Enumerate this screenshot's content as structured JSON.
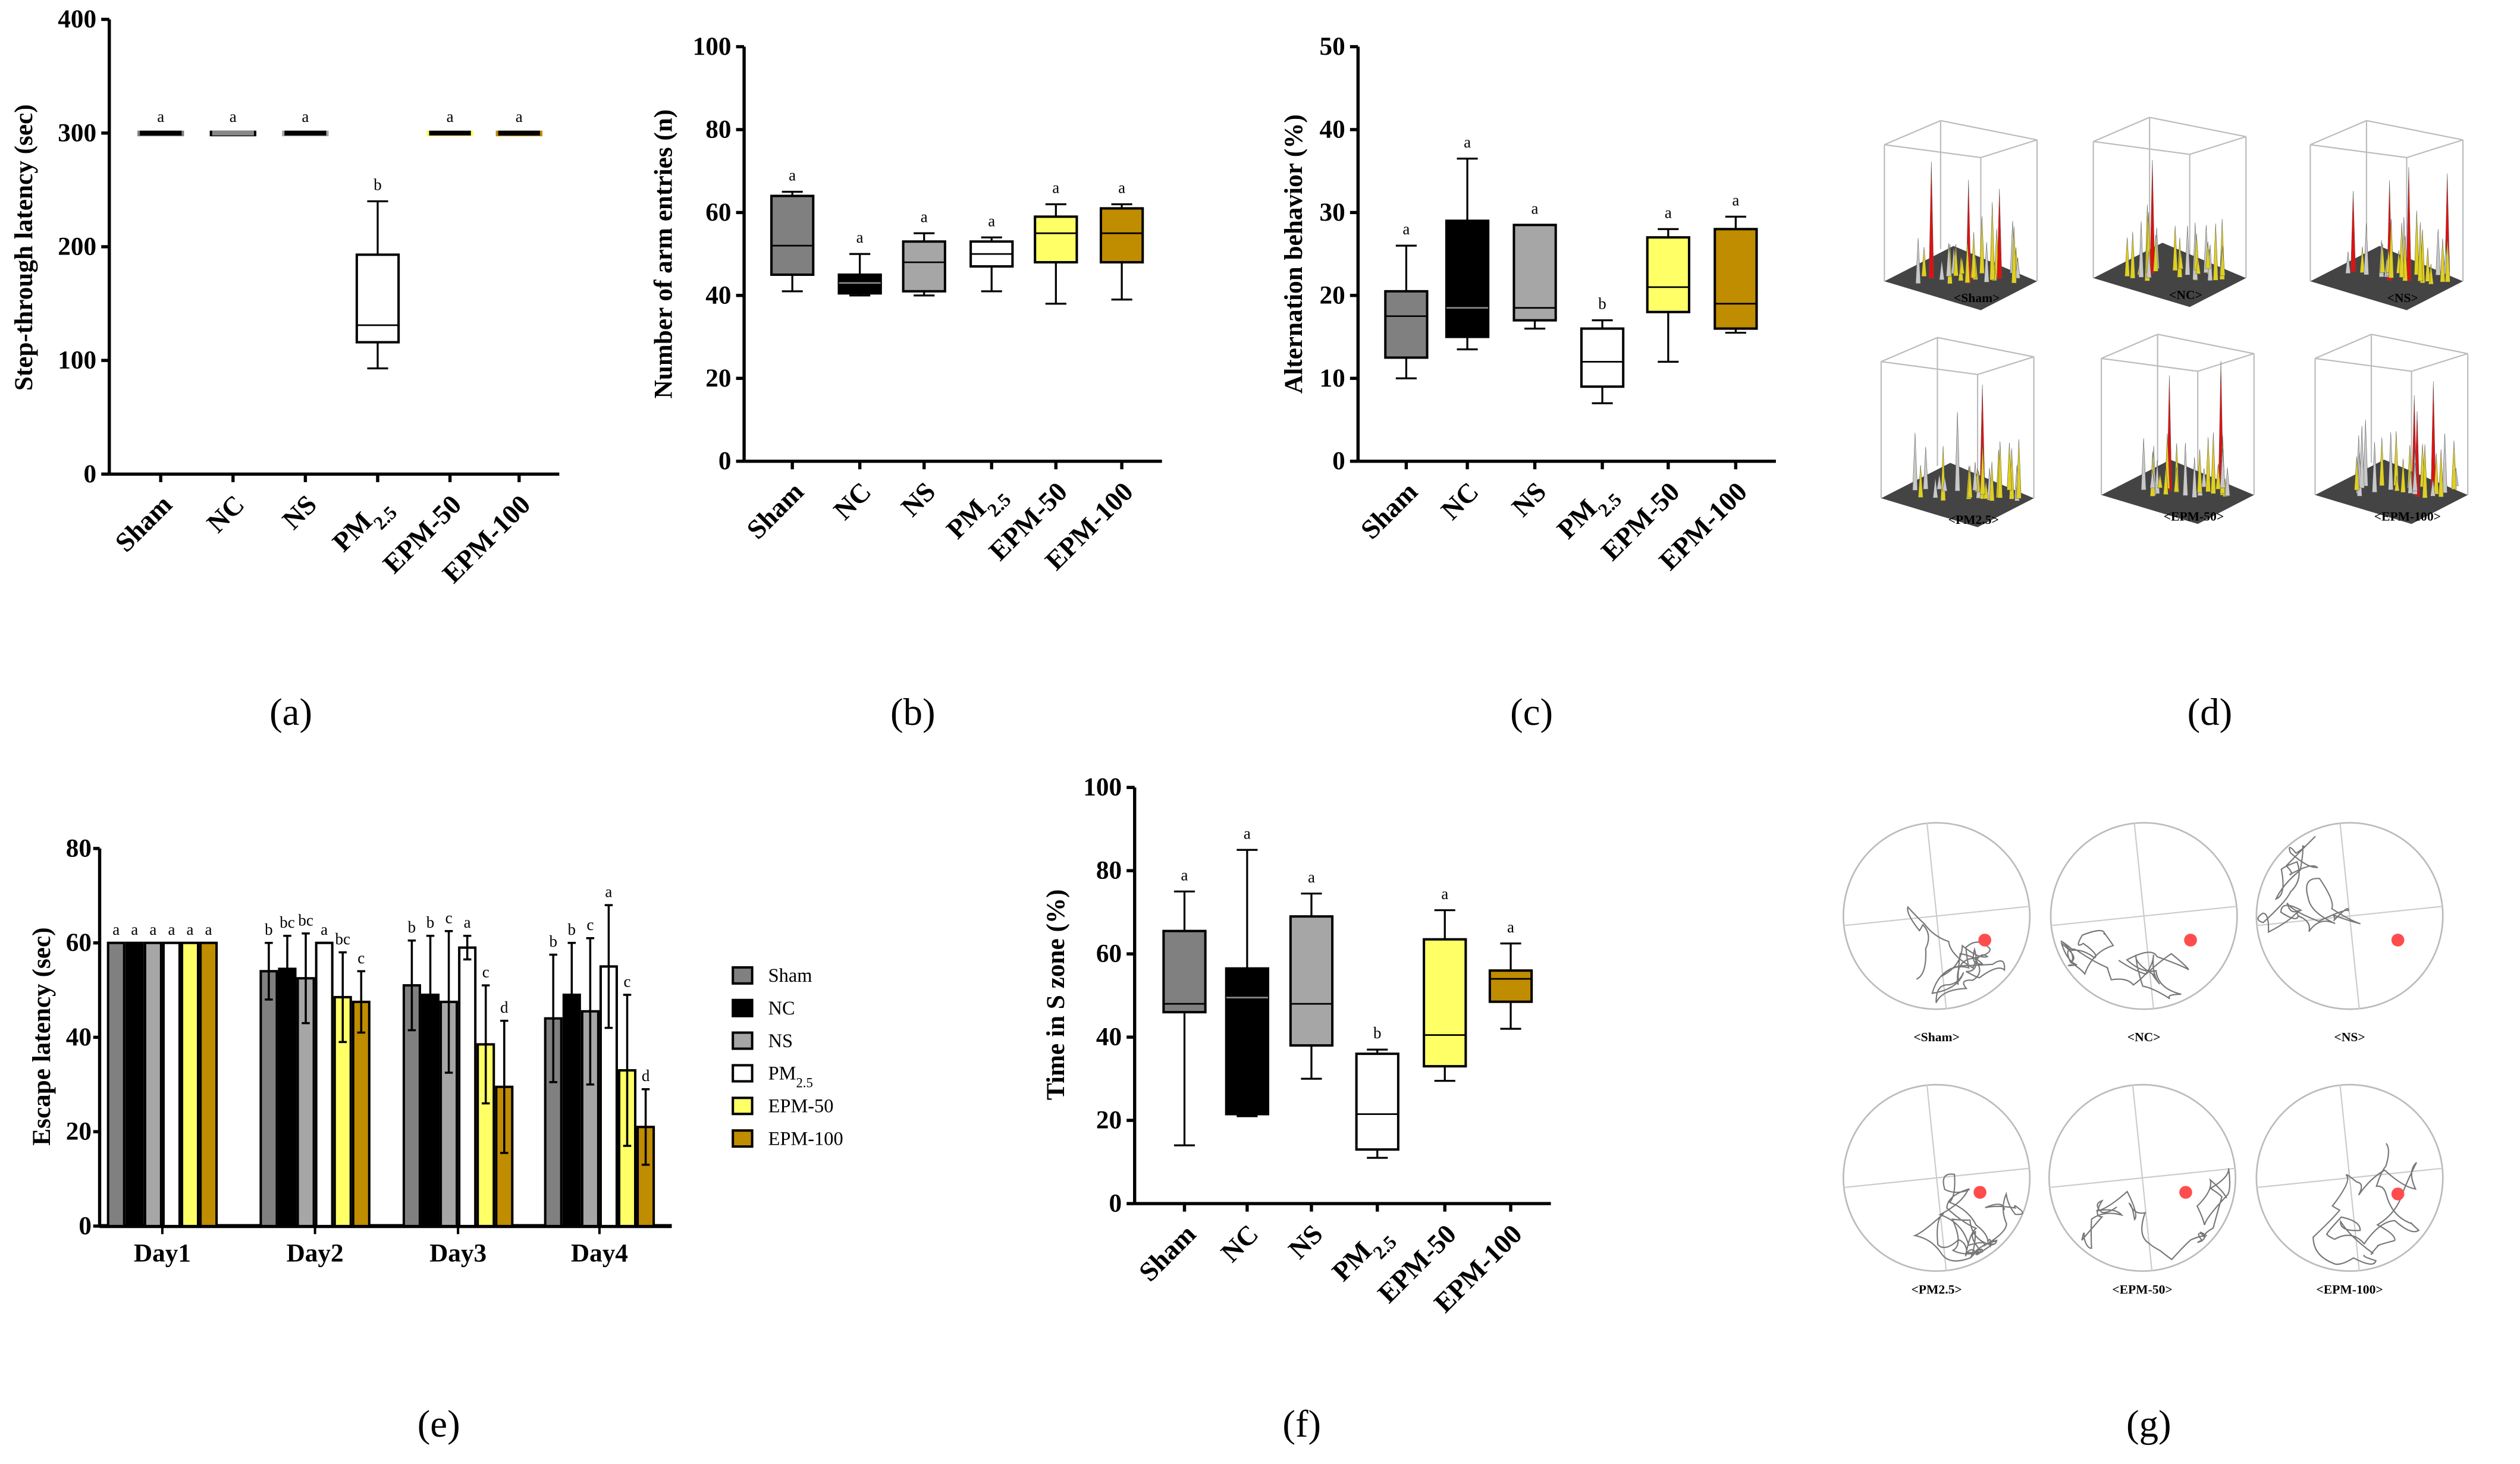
{
  "colors": {
    "Sham": "#808080",
    "NC": "#000000",
    "NS": "#a6a6a6",
    "PM2.5": "#ffffff",
    "EPM-50": "#ffff66",
    "EPM-100": "#c08c00"
  },
  "chart_data": [
    {
      "id": "a",
      "panel_label": "(a)",
      "type": "box",
      "ylabel": "Step-through latency  (sec)",
      "ylim": [
        0,
        400
      ],
      "yticks": [
        0,
        100,
        200,
        300,
        400
      ],
      "categories": [
        "Sham",
        "NC",
        "NS",
        "PM2.5",
        "EPM-50",
        "EPM-100"
      ],
      "boxes": [
        {
          "min": 300,
          "q1": 300,
          "median": 300,
          "q3": 300,
          "max": 300,
          "sig": "a"
        },
        {
          "min": 300,
          "q1": 300,
          "median": 300,
          "q3": 300,
          "max": 300,
          "sig": "a"
        },
        {
          "min": 300,
          "q1": 300,
          "median": 300,
          "q3": 300,
          "max": 300,
          "sig": "a"
        },
        {
          "min": 93,
          "q1": 116,
          "median": 131,
          "q3": 193,
          "max": 240,
          "sig": "b"
        },
        {
          "min": 300,
          "q1": 300,
          "median": 300,
          "q3": 300,
          "max": 300,
          "sig": "a"
        },
        {
          "min": 300,
          "q1": 300,
          "median": 300,
          "q3": 300,
          "max": 300,
          "sig": "a"
        }
      ]
    },
    {
      "id": "b",
      "panel_label": "(b)",
      "type": "box",
      "ylabel": "Number of arm entries (n)",
      "ylim": [
        0,
        100
      ],
      "yticks": [
        0,
        20,
        40,
        60,
        80,
        100
      ],
      "categories": [
        "Sham",
        "NC",
        "NS",
        "PM2.5",
        "EPM-50",
        "EPM-100"
      ],
      "boxes": [
        {
          "min": 41,
          "q1": 45,
          "median": 52,
          "q3": 64,
          "max": 65,
          "sig": "a"
        },
        {
          "min": 40,
          "q1": 40.5,
          "median": 43,
          "q3": 45,
          "max": 50,
          "sig": "a"
        },
        {
          "min": 40,
          "q1": 41,
          "median": 48,
          "q3": 53,
          "max": 55,
          "sig": "a"
        },
        {
          "min": 41,
          "q1": 47,
          "median": 50,
          "q3": 53,
          "max": 54,
          "sig": "a"
        },
        {
          "min": 38,
          "q1": 48,
          "median": 55,
          "q3": 59,
          "max": 62,
          "sig": "a"
        },
        {
          "min": 39,
          "q1": 48,
          "median": 55,
          "q3": 61,
          "max": 62,
          "sig": "a"
        }
      ]
    },
    {
      "id": "c",
      "panel_label": "(c)",
      "type": "box",
      "ylabel": "Alternation behavior (%)",
      "ylim": [
        0,
        50
      ],
      "yticks": [
        0,
        10,
        20,
        30,
        40,
        50
      ],
      "categories": [
        "Sham",
        "NC",
        "NS",
        "PM2.5",
        "EPM-50",
        "EPM-100"
      ],
      "boxes": [
        {
          "min": 10,
          "q1": 12.5,
          "median": 17.5,
          "q3": 20.5,
          "max": 26,
          "sig": "a"
        },
        {
          "min": 13.5,
          "q1": 15,
          "median": 18.5,
          "q3": 29,
          "max": 36.5,
          "sig": "a"
        },
        {
          "min": 16,
          "q1": 17,
          "median": 18.5,
          "q3": 28.5,
          "max": 28.5,
          "sig": "a"
        },
        {
          "min": 7,
          "q1": 9,
          "median": 12,
          "q3": 16,
          "max": 17,
          "sig": "b"
        },
        {
          "min": 12,
          "q1": 18,
          "median": 21,
          "q3": 27,
          "max": 28,
          "sig": "a"
        },
        {
          "min": 15.5,
          "q1": 16,
          "median": 19,
          "q3": 28,
          "max": 29.5,
          "sig": "a"
        }
      ]
    },
    {
      "id": "e",
      "panel_label": "(e)",
      "type": "bar",
      "ylabel": "Escape latency (sec)",
      "ylim": [
        0,
        80
      ],
      "yticks": [
        0,
        20,
        40,
        60,
        80
      ],
      "categories": [
        "Day1",
        "Day2",
        "Day3",
        "Day4"
      ],
      "series": [
        {
          "name": "Sham",
          "values": [
            60,
            54,
            51,
            44
          ],
          "errors": [
            0,
            6,
            9.5,
            13.5
          ],
          "sig": [
            "a",
            "b",
            "b",
            "b"
          ]
        },
        {
          "name": "NC",
          "values": [
            60,
            54.5,
            49,
            49
          ],
          "errors": [
            0,
            7,
            12.5,
            11
          ],
          "sig": [
            "a",
            "bc",
            "b",
            "b"
          ]
        },
        {
          "name": "NS",
          "values": [
            60,
            52.5,
            47.5,
            45.5
          ],
          "errors": [
            0,
            9.5,
            15,
            15.5
          ],
          "sig": [
            "a",
            "bc",
            "c",
            "c"
          ]
        },
        {
          "name": "PM2.5",
          "values": [
            60,
            60,
            59,
            55
          ],
          "errors": [
            0,
            0,
            2.5,
            13
          ],
          "sig": [
            "a",
            "a",
            "a",
            "a"
          ]
        },
        {
          "name": "EPM-50",
          "values": [
            60,
            48.5,
            38.5,
            33
          ],
          "errors": [
            0,
            9.5,
            12.5,
            16
          ],
          "sig": [
            "a",
            "bc",
            "c",
            "c"
          ]
        },
        {
          "name": "EPM-100",
          "values": [
            60,
            47.5,
            29.5,
            21
          ],
          "errors": [
            0,
            6.5,
            14,
            8
          ],
          "sig": [
            "a",
            "c",
            "d",
            "d"
          ]
        }
      ],
      "legend": "right"
    },
    {
      "id": "f",
      "panel_label": "(f)",
      "type": "box",
      "ylabel": "Time in S zone (%)",
      "ylim": [
        0,
        100
      ],
      "yticks": [
        0,
        20,
        40,
        60,
        80,
        100
      ],
      "categories": [
        "Sham",
        "NC",
        "NS",
        "PM2.5",
        "EPM-50",
        "EPM-100"
      ],
      "boxes": [
        {
          "min": 14,
          "q1": 46,
          "median": 48,
          "q3": 65.5,
          "max": 75,
          "sig": "a"
        },
        {
          "min": 21,
          "q1": 21.5,
          "median": 49.5,
          "q3": 56.5,
          "max": 85,
          "sig": "a"
        },
        {
          "min": 30,
          "q1": 38,
          "median": 48,
          "q3": 69,
          "max": 74.5,
          "sig": "a"
        },
        {
          "min": 11,
          "q1": 13,
          "median": 21.5,
          "q3": 36,
          "max": 37,
          "sig": "b"
        },
        {
          "min": 29.5,
          "q1": 33,
          "median": 40.5,
          "q3": 63.5,
          "max": 70.5,
          "sig": "a"
        },
        {
          "min": 42,
          "q1": 48.5,
          "median": 54,
          "q3": 56,
          "max": 62.5,
          "sig": "a"
        }
      ]
    }
  ],
  "panel_d": {
    "panel_label": "(d)",
    "labels": [
      "<Sham>",
      "<NC>",
      "<NS>",
      "<PM2.5>",
      "<EPM-50>",
      "<EPM-100>"
    ]
  },
  "panel_g": {
    "panel_label": "(g)",
    "labels": [
      "<Sham>",
      "<NC>",
      "<NS>",
      "<PM2.5>",
      "<EPM-50>",
      "<EPM-100>"
    ]
  }
}
